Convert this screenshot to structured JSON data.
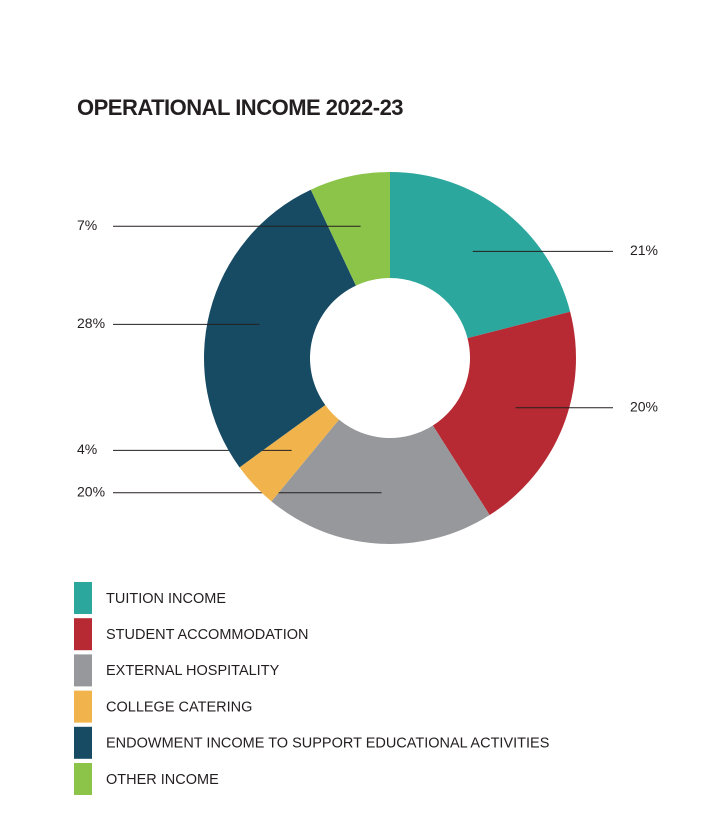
{
  "chart_data": {
    "type": "donut",
    "title": "OPERATIONAL INCOME 2022-23",
    "categories": [
      "TUITION INCOME",
      "STUDENT ACCOMMODATION",
      "EXTERNAL HOSPITALITY",
      "COLLEGE CATERING",
      "ENDOWMENT INCOME TO SUPPORT EDUCATIONAL ACTIVITIES",
      "OTHER INCOME"
    ],
    "values": [
      21,
      20,
      20,
      4,
      28,
      7
    ],
    "value_labels": [
      "21%",
      "20%",
      "20%",
      "4%",
      "28%",
      "7%"
    ],
    "colors": [
      "#2ba79d",
      "#b72a33",
      "#97989b",
      "#f1b34b",
      "#174a63",
      "#8cc44a"
    ]
  }
}
